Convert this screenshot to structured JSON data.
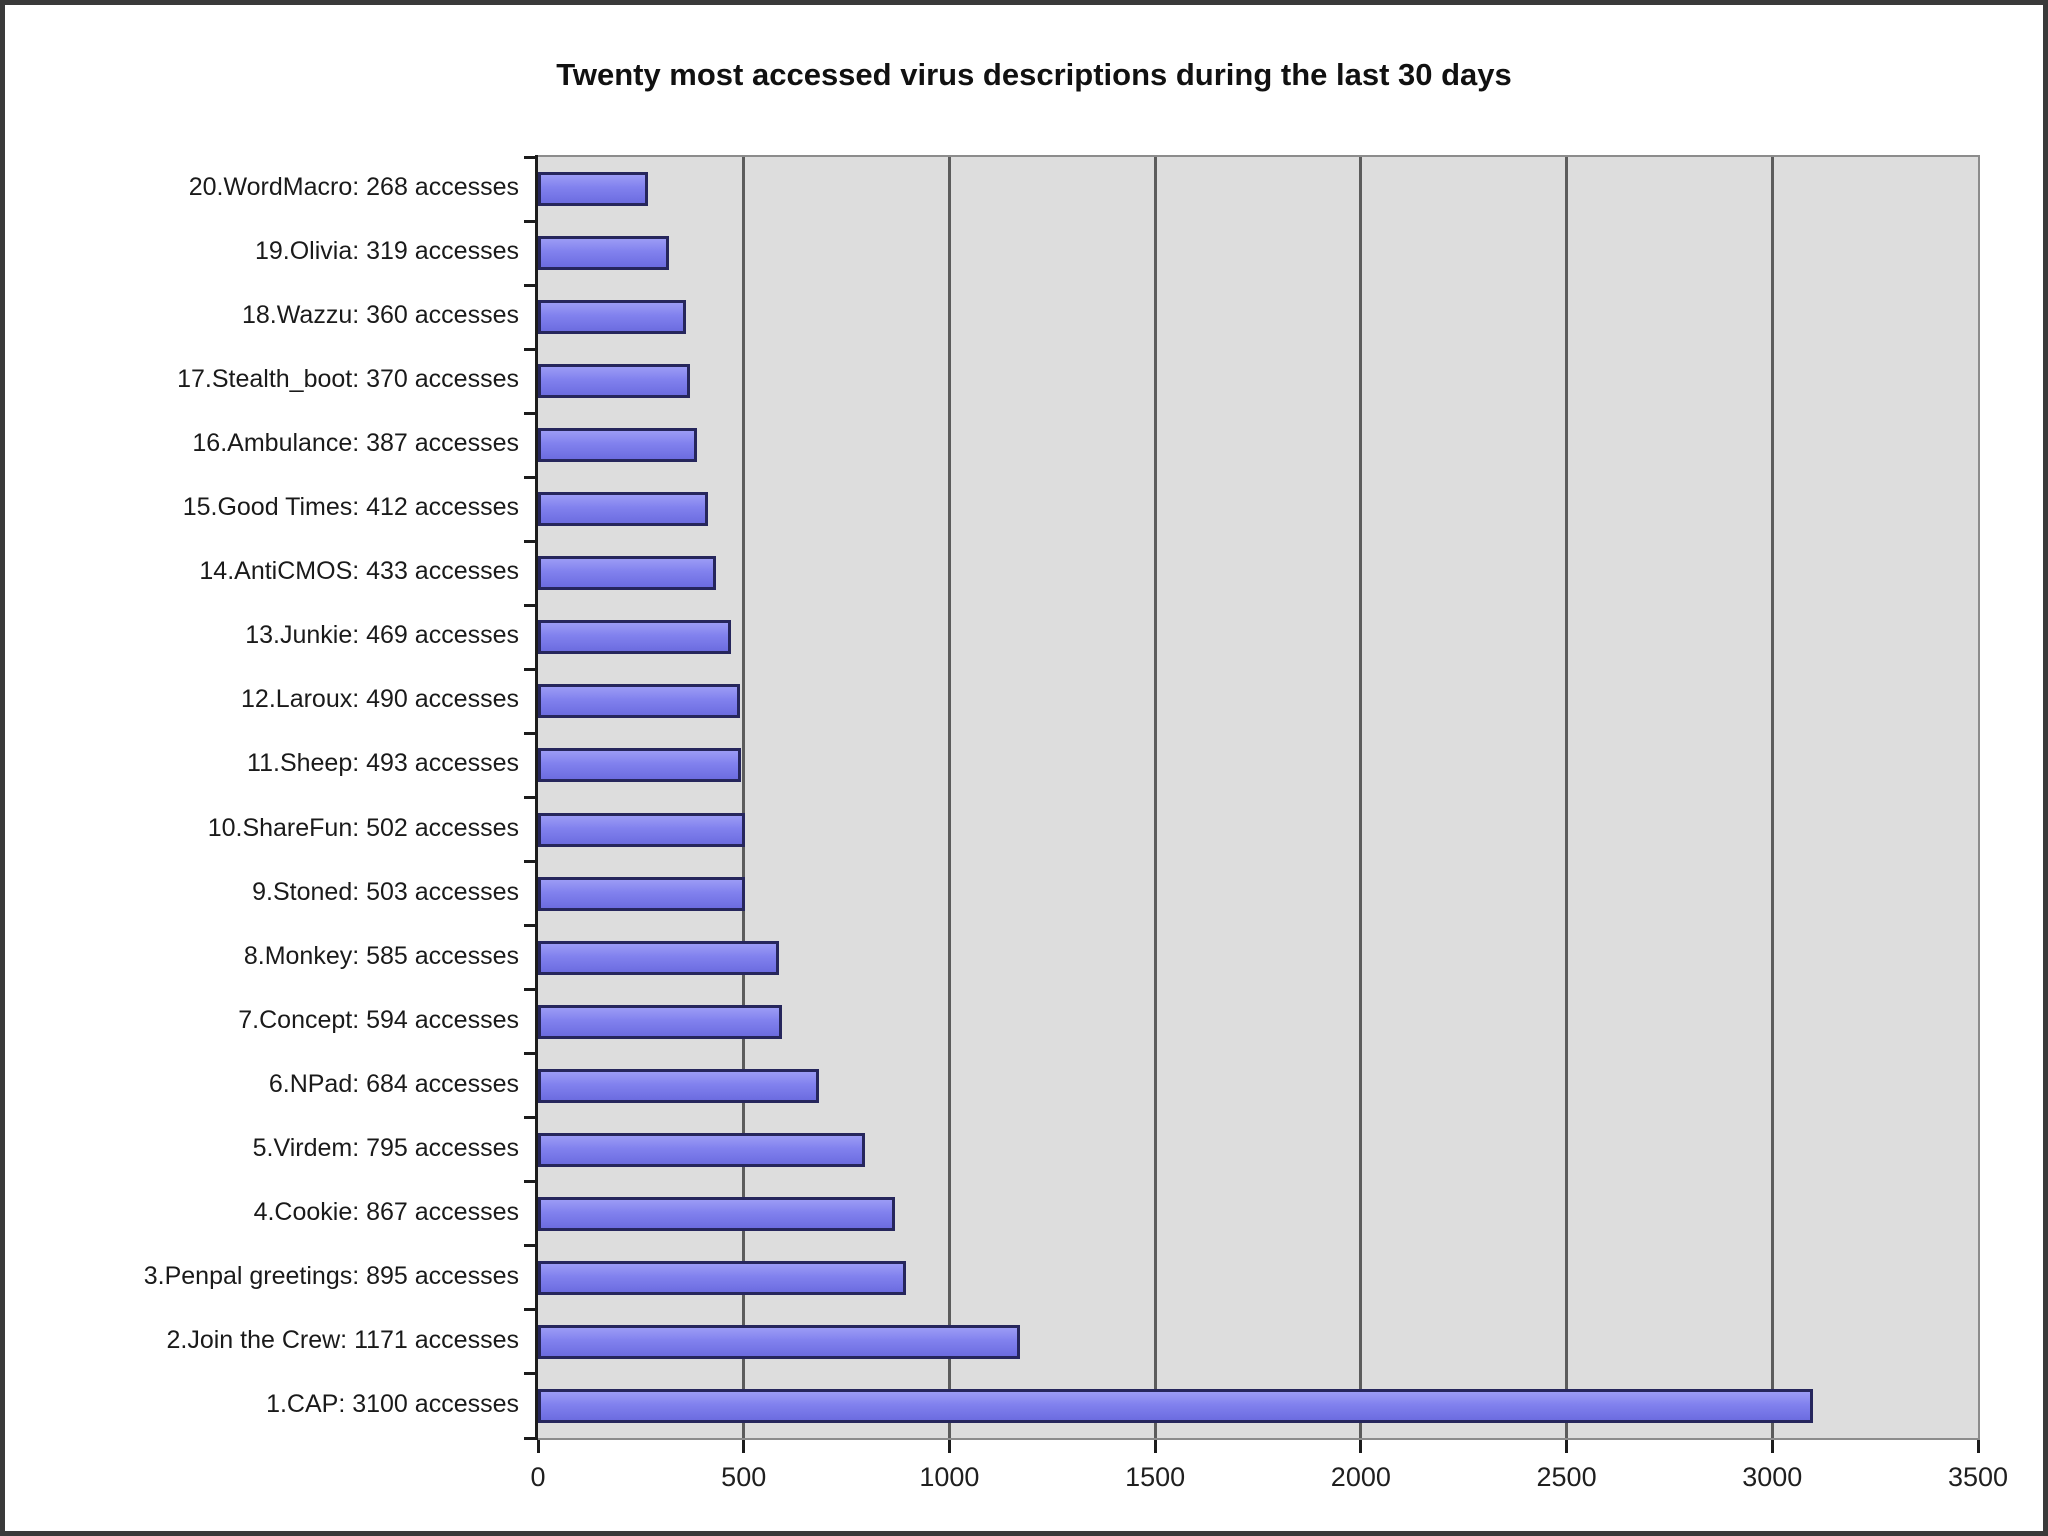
{
  "chart_data": {
    "type": "bar",
    "orientation": "horizontal",
    "title": "Twenty most accessed virus descriptions during the last 30 days",
    "categories": [
      "20.WordMacro: 268 accesses",
      "19.Olivia: 319 accesses",
      "18.Wazzu: 360 accesses",
      "17.Stealth_boot: 370 accesses",
      "16.Ambulance: 387 accesses",
      "15.Good Times: 412 accesses",
      "14.AntiCMOS: 433 accesses",
      "13.Junkie: 469 accesses",
      "12.Laroux: 490 accesses",
      "11.Sheep: 493 accesses",
      "10.ShareFun: 502 accesses",
      "9.Stoned: 503 accesses",
      "8.Monkey: 585 accesses",
      "7.Concept: 594 accesses",
      "6.NPad: 684 accesses",
      "5.Virdem: 795 accesses",
      "4.Cookie: 867 accesses",
      "3.Penpal greetings: 895 accesses",
      "2.Join the Crew: 1171 accesses",
      "1.CAP: 3100 accesses"
    ],
    "values": [
      268,
      319,
      360,
      370,
      387,
      412,
      433,
      469,
      490,
      493,
      502,
      503,
      585,
      594,
      684,
      795,
      867,
      895,
      1171,
      3100
    ],
    "unit": "accesses",
    "xlabel": "",
    "ylabel": "",
    "xlim": [
      0,
      3500
    ],
    "x_ticks": [
      0,
      500,
      1000,
      1500,
      2000,
      2500,
      3000,
      3500
    ],
    "grid": true,
    "legend": false,
    "colors": {
      "bar_fill": "#8181ee",
      "bar_fill_light": "#9b9bf5",
      "bar_fill_dark": "#6c6ce0",
      "bar_border": "#26265c",
      "plot_background": "#dddddd",
      "plot_border": "#8c8c8c",
      "gridline": "#5c5c5c",
      "axis": "#1c1c1c",
      "page_background": "#ffffff",
      "frame": "#3a3a3a",
      "text": "#1a1a1a"
    }
  }
}
